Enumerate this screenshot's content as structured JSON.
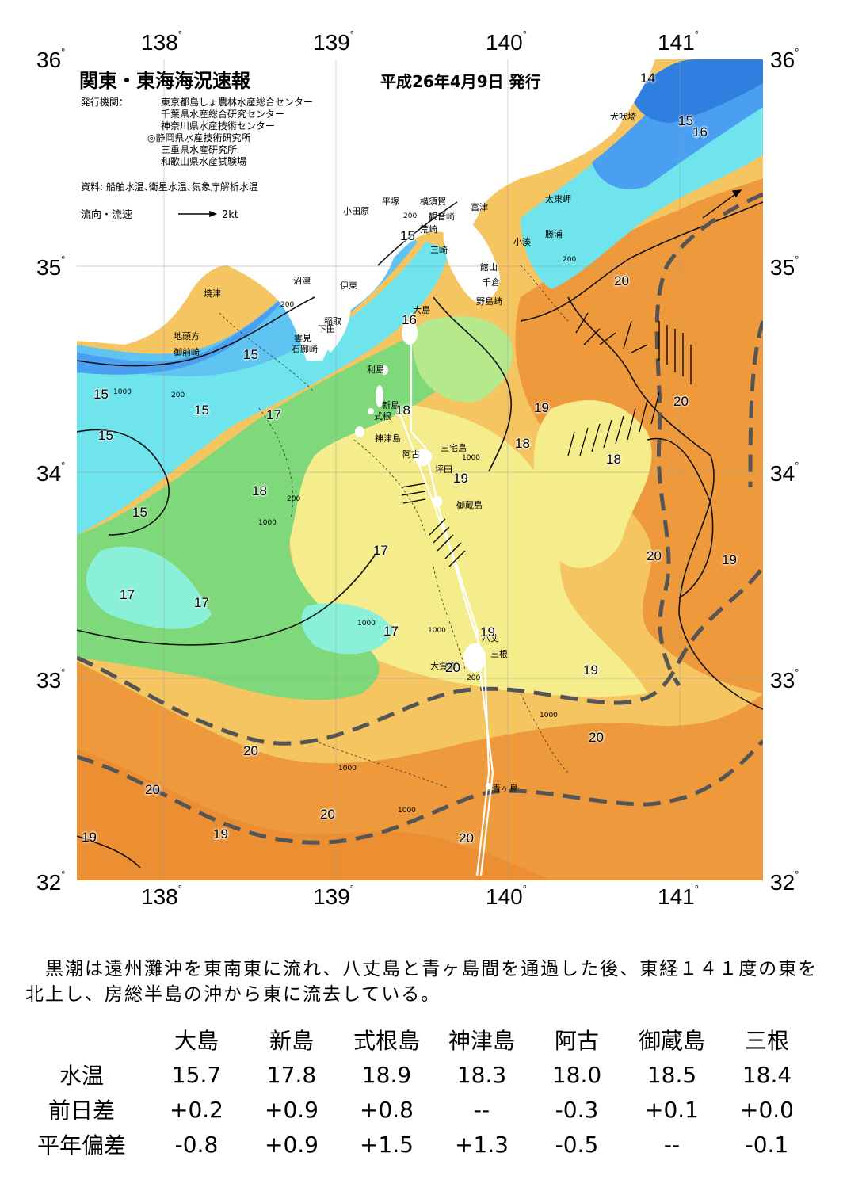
{
  "header": {
    "title": "関東・東海海況速報",
    "date": "平成26年4月9日 発行",
    "issuer_label": "発行機関：",
    "issuers": [
      "東京都島しょ農林水産総合センター",
      "千葉県水産総合研究センター",
      "神奈川県水産技術センター",
      "◎静岡県水産技術研究所",
      "三重県水産研究所",
      "和歌山県水産試験場"
    ],
    "source": "資料: 船舶水温､衛星水温､気象庁解析水温",
    "legend_label": "流向・流速",
    "legend_speed": "2kt"
  },
  "axes": {
    "lon_labels": [
      "138",
      "139",
      "140",
      "141"
    ],
    "lat_labels": [
      "36",
      "35",
      "34",
      "33",
      "32"
    ],
    "degree": "°"
  },
  "places": [
    "犬吠埼",
    "太東岬",
    "勝浦",
    "小湊",
    "富津",
    "横須賀",
    "平塚",
    "小田原",
    "観音崎",
    "荒崎",
    "三崎",
    "館山",
    "千倉",
    "野島崎",
    "大島",
    "沼津",
    "伊東",
    "焼津",
    "稲取",
    "下田",
    "雲見",
    "石廊崎",
    "地頭方",
    "御前崎",
    "利島",
    "新島",
    "式根",
    "神津島",
    "阿古",
    "三宅島",
    "坪田",
    "御蔵島",
    "八丈",
    "三根",
    "大賀郷",
    "青ヶ島"
  ],
  "isotherm_labels": [
    "14",
    "15",
    "16",
    "15",
    "20",
    "16",
    "15",
    "15",
    "15",
    "15",
    "17",
    "18",
    "19",
    "18",
    "20",
    "18",
    "19",
    "18",
    "15",
    "17",
    "20",
    "19",
    "17",
    "17",
    "17",
    "19",
    "19",
    "20",
    "20",
    "20",
    "20",
    "20",
    "19",
    "20"
  ],
  "depth_labels": [
    "200",
    "1000",
    "200",
    "200",
    "1000",
    "200",
    "1000",
    "1000",
    "200",
    "1000",
    "1000",
    "200",
    "1000",
    "1000"
  ],
  "summary": "　黒潮は遠州灘沖を東南東に流れ、八丈島と青ヶ島間を通過した後、東経１４１度の東を北上し、房総半島の沖から東に流去している。",
  "table": {
    "stations": [
      "大島",
      "新島",
      "式根島",
      "神津島",
      "阿古",
      "御蔵島",
      "三根"
    ],
    "rows": [
      {
        "label": "水温",
        "values": [
          "15.7",
          "17.8",
          "18.9",
          "18.3",
          "18.0",
          "18.5",
          "18.4"
        ]
      },
      {
        "label": "前日差",
        "values": [
          "+0.2",
          "+0.9",
          "+0.8",
          "--",
          "-0.3",
          "+0.1",
          "+0.0"
        ]
      },
      {
        "label": "平年偏差",
        "values": [
          "-0.8",
          "+0.9",
          "+1.5",
          "+1.3",
          "-0.5",
          "--",
          "-0.1"
        ]
      }
    ]
  },
  "colors": {
    "deep_blue": "#2f7fe0",
    "blue": "#4a9ff0",
    "light_blue": "#5fc4f2",
    "cyan": "#6fe4ec",
    "aqua": "#8af0d8",
    "green": "#7fd97a",
    "light_green": "#b6e88c",
    "yellow": "#f5ec8c",
    "light_orange": "#f4c561",
    "orange": "#f0a545",
    "deep_orange": "#ea8a2e",
    "kuroshio_axis": "#555555",
    "land": "#ffffff"
  }
}
